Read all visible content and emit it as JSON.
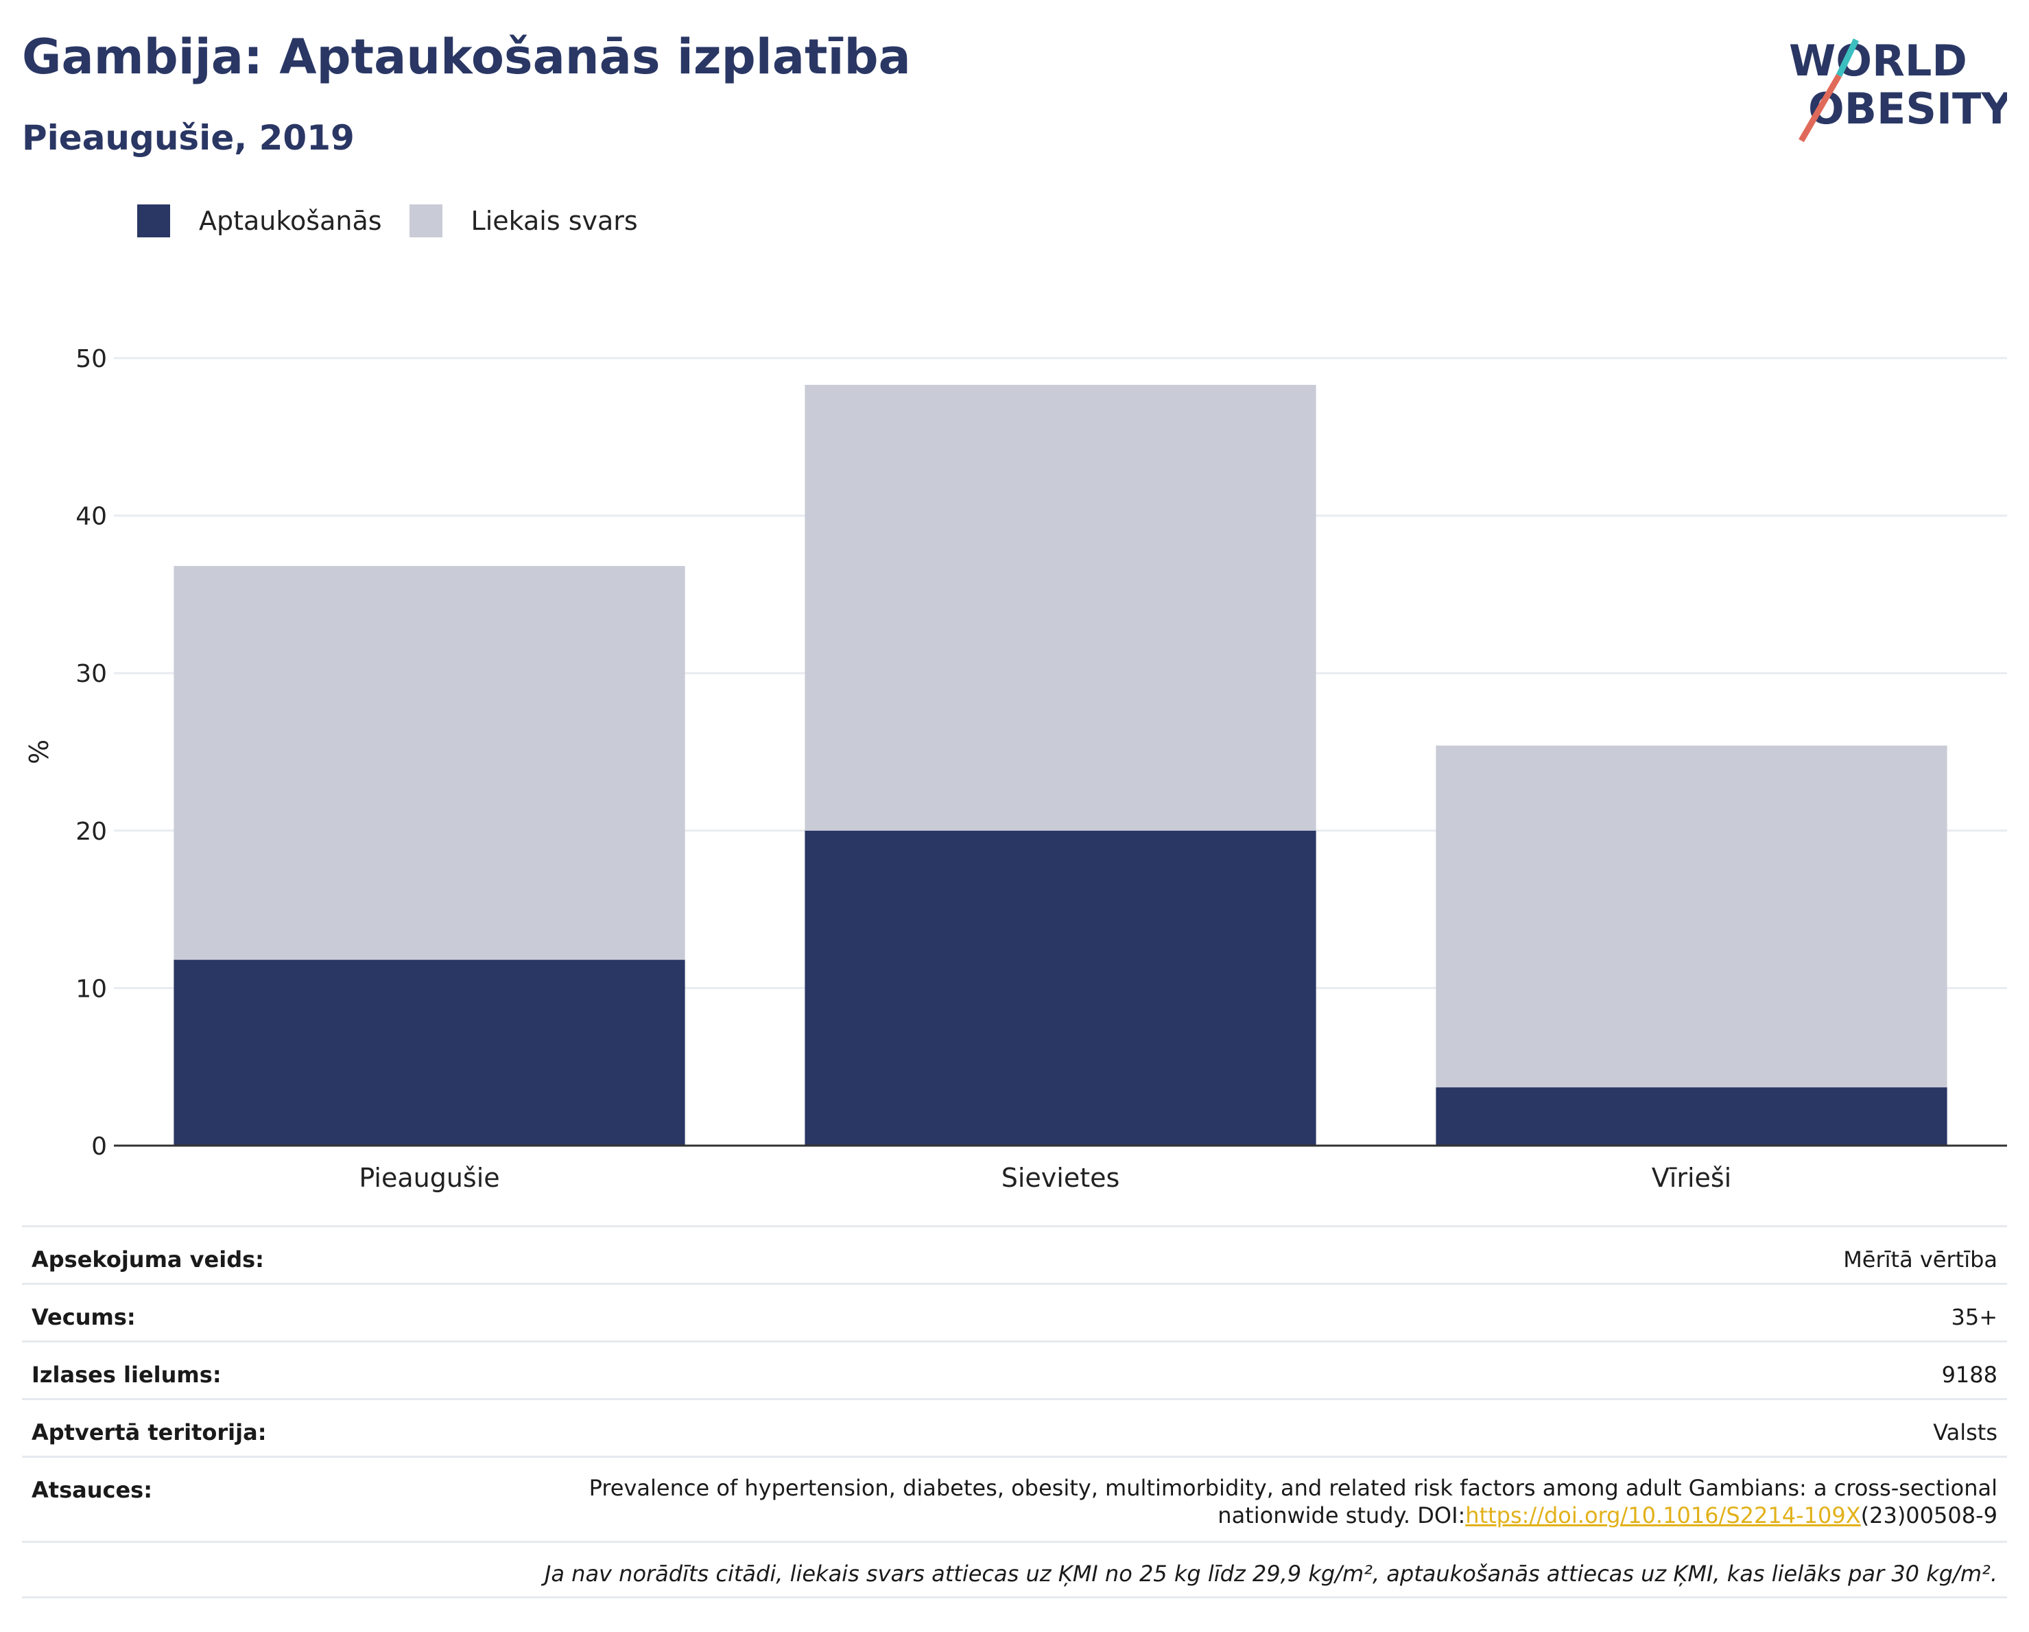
{
  "header": {
    "title": "Gambija: Aptaukošanās izplatība",
    "subtitle": "Pieaugušie, 2019",
    "logo_text": "WORLD OBESITY"
  },
  "legend": [
    {
      "label": "Aptaukošanās",
      "color": "#2a3764"
    },
    {
      "label": "Liekais svars",
      "color": "#c9cbd6"
    }
  ],
  "chart_data": {
    "type": "bar",
    "stacked": true,
    "categories": [
      "Pieaugušie",
      "Sievietes",
      "Vīrieši"
    ],
    "series": [
      {
        "name": "Aptaukošanās",
        "values": [
          11.8,
          20.0,
          3.7
        ],
        "color": "#2a3764"
      },
      {
        "name": "Liekais svars",
        "values": [
          25.0,
          28.3,
          21.7
        ],
        "color": "#c9cbd6"
      }
    ],
    "ylabel": "%",
    "ylim": [
      0,
      50
    ],
    "yticks": [
      0,
      10,
      20,
      30,
      40,
      50
    ],
    "grid": true,
    "legend_position": "top-left"
  },
  "info": {
    "survey_type_label": "Apsekojuma veids:",
    "survey_type_value": "Mērītā vērtība",
    "age_label": "Vecums:",
    "age_value": "35+",
    "sample_label": "Izlases lielums:",
    "sample_value": "9188",
    "coverage_label": "Aptvertā teritorija:",
    "coverage_value": "Valsts",
    "references_label": "Atsauces:",
    "references_text": "Prevalence of hypertension, diabetes, obesity, multimorbidity, and related risk factors among adult Gambians: a cross-sectional nationwide study. DOI:",
    "references_link": "https://doi.org/10.1016/S2214-109X",
    "references_suffix": "(23)00508-9",
    "note": "Ja nav norādīts citādi, liekais svars attiecas uz ĶMI no 25 kg līdz 29,9 kg/m², aptaukošanās attiecas uz ĶMI, kas lielāks par 30 kg/m²."
  }
}
